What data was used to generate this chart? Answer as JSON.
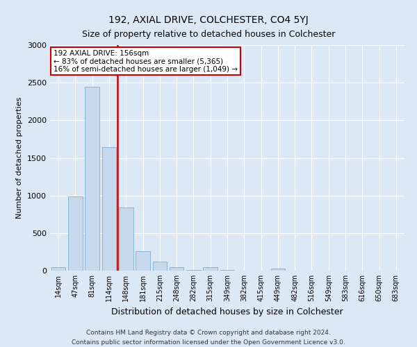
{
  "title": "192, AXIAL DRIVE, COLCHESTER, CO4 5YJ",
  "subtitle": "Size of property relative to detached houses in Colchester",
  "xlabel": "Distribution of detached houses by size in Colchester",
  "ylabel": "Number of detached properties",
  "categories": [
    "14sqm",
    "47sqm",
    "81sqm",
    "114sqm",
    "148sqm",
    "181sqm",
    "215sqm",
    "248sqm",
    "282sqm",
    "315sqm",
    "349sqm",
    "382sqm",
    "415sqm",
    "449sqm",
    "482sqm",
    "516sqm",
    "549sqm",
    "583sqm",
    "616sqm",
    "650sqm",
    "683sqm"
  ],
  "values": [
    50,
    990,
    2450,
    1640,
    840,
    255,
    120,
    50,
    10,
    45,
    5,
    2,
    1,
    30,
    1,
    1,
    1,
    1,
    1,
    1,
    1
  ],
  "bar_color": "#c5d8ec",
  "bar_edge_color": "#7aafd4",
  "vline_color": "#cc0000",
  "vline_x_index": 3.5,
  "annotation_line1": "192 AXIAL DRIVE: 156sqm",
  "annotation_line2": "← 83% of detached houses are smaller (5,365)",
  "annotation_line3": "16% of semi-detached houses are larger (1,049) →",
  "annotation_box_facecolor": "#ffffff",
  "annotation_box_edgecolor": "#cc0000",
  "ylim": [
    0,
    3000
  ],
  "background_color": "#dde8f5",
  "plot_background": "#dde8f5",
  "footer1": "Contains HM Land Registry data © Crown copyright and database right 2024.",
  "footer2": "Contains public sector information licensed under the Open Government Licence v3.0.",
  "title_fontsize": 10,
  "subtitle_fontsize": 9,
  "xlabel_fontsize": 9,
  "ylabel_fontsize": 8,
  "tick_fontsize": 7,
  "annotation_fontsize": 7.5,
  "footer_fontsize": 6.5,
  "grid_color": "#ffffff",
  "yticks": [
    0,
    500,
    1000,
    1500,
    2000,
    2500,
    3000
  ]
}
